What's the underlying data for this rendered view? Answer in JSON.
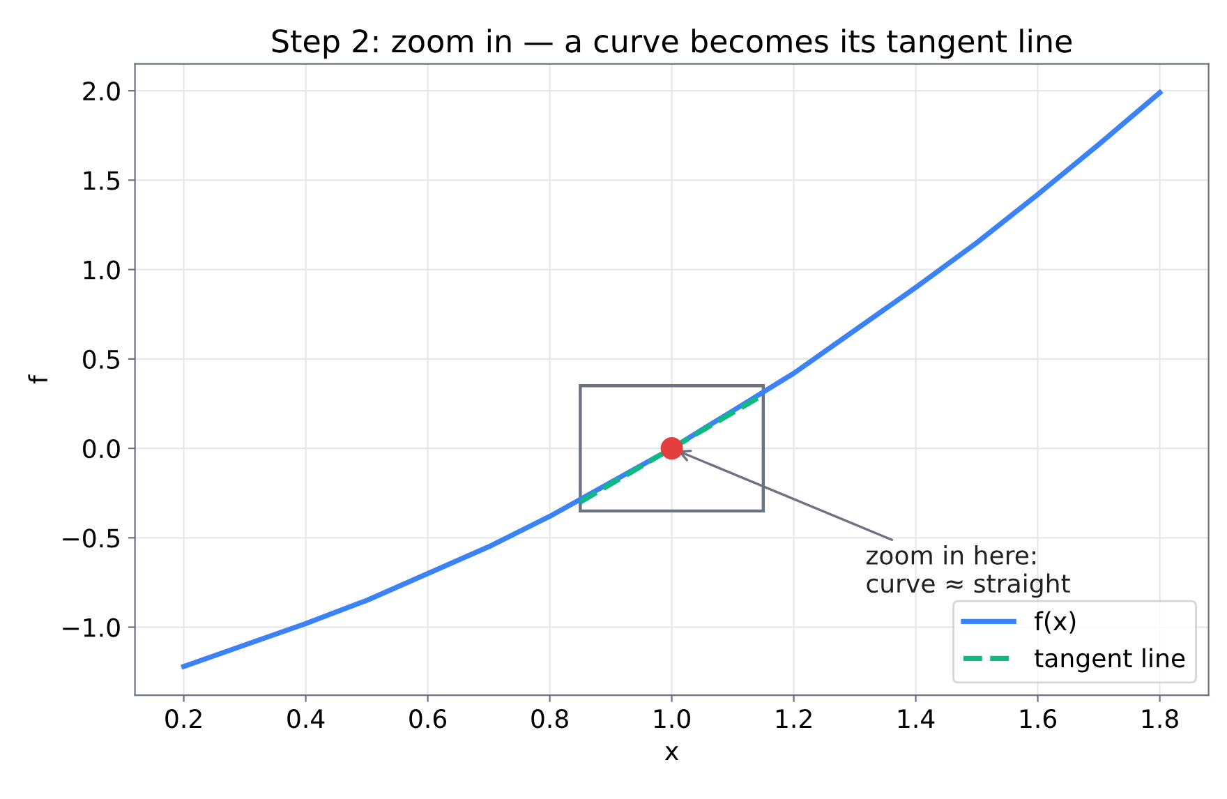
{
  "chart_data": {
    "type": "line",
    "title": "Step 2: zoom in — a curve becomes its tangent line",
    "xlabel": "x",
    "ylabel": "f",
    "series": [
      {
        "name": "f(x)",
        "color": "#3b82f6",
        "line_style": "solid",
        "x": [
          0.2,
          0.3,
          0.4,
          0.5,
          0.6,
          0.7,
          0.8,
          0.9,
          1.0,
          1.1,
          1.2,
          1.3,
          1.4,
          1.5,
          1.6,
          1.7,
          1.8
        ],
        "values": [
          -1.22,
          -1.1,
          -0.98,
          -0.85,
          -0.7,
          -0.55,
          -0.38,
          -0.19,
          0.0,
          0.21,
          0.42,
          0.66,
          0.9,
          1.15,
          1.42,
          1.7,
          1.99
        ]
      },
      {
        "name": "tangent line",
        "color": "#10b981",
        "line_style": "dashed",
        "x": [
          0.85,
          1.15
        ],
        "values": [
          -0.3,
          0.3
        ]
      },
      {
        "type": "scatter",
        "color": "#e53e3e",
        "marker": "circle",
        "x": [
          1.0
        ],
        "values": [
          0.0
        ]
      }
    ],
    "annotations": [
      {
        "text": "zoom in here:\ncurve ≈ straight",
        "x": 1.0,
        "y": 0.0
      }
    ],
    "xlim": [
      0.12,
      1.88
    ],
    "ylim": [
      -1.38,
      2.15
    ],
    "xticks": [
      {
        "value": 0.2,
        "label": "0.2"
      },
      {
        "value": 0.4,
        "label": "0.4"
      },
      {
        "value": 0.6,
        "label": "0.6"
      },
      {
        "value": 0.8,
        "label": "0.8"
      },
      {
        "value": 1.0,
        "label": "1.0"
      },
      {
        "value": 1.2,
        "label": "1.2"
      },
      {
        "value": 1.4,
        "label": "1.4"
      },
      {
        "value": 1.6,
        "label": "1.6"
      },
      {
        "value": 1.8,
        "label": "1.8"
      }
    ],
    "yticks": [
      {
        "value": -1.0,
        "label": "−1.0"
      },
      {
        "value": -0.5,
        "label": "−0.5"
      },
      {
        "value": 0.0,
        "label": "0.0"
      },
      {
        "value": 0.5,
        "label": "0.5"
      },
      {
        "value": 1.0,
        "label": "1.0"
      },
      {
        "value": 1.5,
        "label": "1.5"
      },
      {
        "value": 2.0,
        "label": "2.0"
      }
    ],
    "grid": true,
    "legend": "bottom right"
  }
}
